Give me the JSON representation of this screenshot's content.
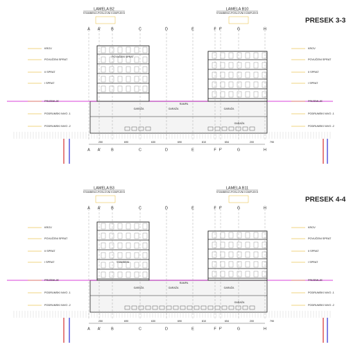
{
  "sections": [
    {
      "title": "PRESEK 3-3",
      "buildings": [
        {
          "name": "LAMELA B2",
          "subtitle": "STAMBENO-POSLOVNI KOMPLEKS"
        },
        {
          "name": "LAMELA B10",
          "subtitle": "STAMBENO-POSLOVNI KOMPLEKS"
        }
      ],
      "axes": [
        "A",
        "A'",
        "B",
        "C",
        "D",
        "E",
        "F",
        "F'",
        "G",
        "H"
      ],
      "dimensions": [
        "250",
        "690",
        "630",
        "690",
        "810",
        "654",
        "200",
        "790"
      ],
      "levels": [
        "KROV",
        "POVUČENI SPRAT",
        "II SPRAT",
        "I SPRAT",
        "PRIZEMLJE",
        "PODRUMSKI NIVO -1",
        "PODRUMSKI NIVO -2"
      ],
      "rooms": [
        "POVUČENI SPRAT",
        "GARAŽA",
        "GARAŽA",
        "GARAŽA",
        "GARAŽA",
        "RAMPA"
      ]
    },
    {
      "title": "PRESEK 4-4",
      "buildings": [
        {
          "name": "LAMELA B3",
          "subtitle": "STAMBENO-POSLOVNI KOMPLEKS"
        },
        {
          "name": "LAMELA B11",
          "subtitle": "STAMBENO-POSLOVNI KOMPLEKS"
        }
      ],
      "axes": [
        "A",
        "A'",
        "B",
        "C",
        "D",
        "E",
        "F",
        "F'",
        "G",
        "H"
      ],
      "dimensions": [
        "250",
        "690",
        "630",
        "690",
        "810",
        "654",
        "200",
        "790"
      ],
      "levels": [
        "KROV",
        "POVUČENI SPRAT",
        "II SPRAT",
        "I SPRAT",
        "PRIZEMLJE",
        "PODRUMSKI NIVO -1",
        "PODRUMSKI NIVO -2"
      ],
      "rooms": [
        "STAMBENI",
        "GARAŽA",
        "GARAŽA",
        "GARAŽA",
        "GARAŽA",
        "RAMPA"
      ]
    }
  ]
}
